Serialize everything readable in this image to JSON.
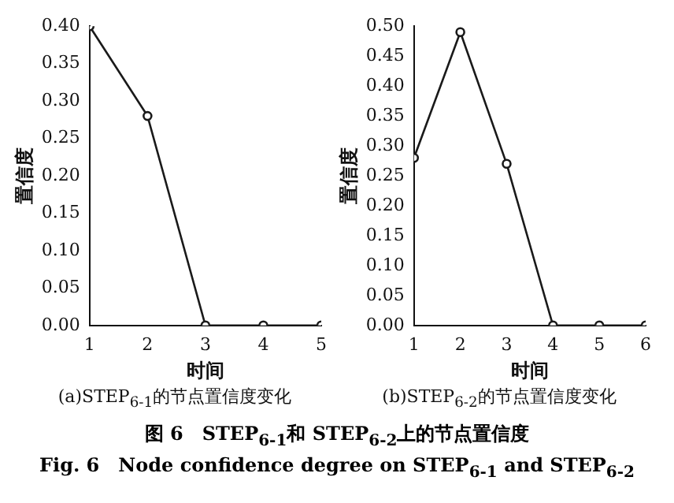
{
  "chart_data": [
    {
      "type": "line",
      "xlabel": "时间",
      "ylabel": "置信度",
      "x": [
        1,
        2,
        3,
        4,
        5
      ],
      "values": [
        0.4,
        0.28,
        0,
        0,
        0
      ],
      "color": "#1a1a1a",
      "marker": "circle",
      "xlim": [
        1,
        5
      ],
      "xticks": [
        1,
        2,
        3,
        4,
        5
      ],
      "ylim": [
        0,
        0.4
      ],
      "yticks": [
        {
          "value": 0,
          "label": "0.00"
        },
        {
          "value": 0.05,
          "label": "0.05"
        },
        {
          "value": 0.1,
          "label": "0.10"
        },
        {
          "value": 0.15,
          "label": "0.15"
        },
        {
          "value": 0.2,
          "label": "0.20"
        },
        {
          "value": 0.25,
          "label": "0.25"
        },
        {
          "value": 0.3,
          "label": "0.30"
        },
        {
          "value": 0.35,
          "label": "0.35"
        },
        {
          "value": 0.4,
          "label": "0.40"
        }
      ],
      "annotations": [
        "(a)STEP$_{6-1}$的节点置信度变化"
      ]
    },
    {
      "type": "line",
      "xlabel": "时间",
      "ylabel": "置信度",
      "x": [
        1,
        2,
        3,
        4,
        5,
        6
      ],
      "values": [
        0.28,
        0.49,
        0.27,
        0,
        0,
        0
      ],
      "color": "#1a1a1a",
      "marker": "circle",
      "xlim": [
        1,
        6
      ],
      "xticks": [
        1,
        2,
        3,
        4,
        5,
        6
      ],
      "ylim": [
        0,
        0.5
      ],
      "yticks": [
        {
          "value": 0,
          "label": "0.00"
        },
        {
          "value": 0.05,
          "label": "0.05"
        },
        {
          "value": 0.1,
          "label": "0.10"
        },
        {
          "value": 0.15,
          "label": "0.15"
        },
        {
          "value": 0.2,
          "label": "0.20"
        },
        {
          "value": 0.25,
          "label": "0.25"
        },
        {
          "value": 0.3,
          "label": "0.30"
        },
        {
          "value": 0.35,
          "label": "0.35"
        },
        {
          "value": 0.4,
          "label": "0.40"
        },
        {
          "value": 0.45,
          "label": "0.45"
        },
        {
          "value": 0.5,
          "label": "0.50"
        }
      ],
      "annotations": [
        "(b)STEP$_{6-2}$的节点置信度变化",
        "图 6　STEP$_{6-1}$和 STEP$_{6-2}$上的节点置信度",
        "Fig. 6　Node confidence degree on STEP$_{6-1}$ and STEP$_{6-2}$"
      ]
    }
  ]
}
